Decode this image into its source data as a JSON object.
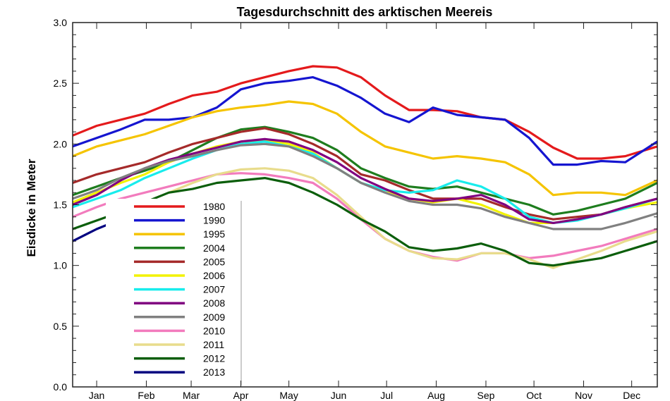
{
  "chart_data": {
    "type": "line",
    "title": "Tagesdurchschnitt des arktischen Meereis",
    "xlabel": "",
    "ylabel": "Eisdicke in Meter",
    "xlim": [
      0,
      365
    ],
    "ylim": [
      0.0,
      3.0
    ],
    "yticks": [
      "0.0",
      "0.5",
      "1.0",
      "1.5",
      "2.0",
      "2.5",
      "3.0"
    ],
    "xticks": [
      {
        "label": "Jan",
        "day": 15
      },
      {
        "label": "Feb",
        "day": 46
      },
      {
        "label": "Mar",
        "day": 74
      },
      {
        "label": "Apr",
        "day": 105
      },
      {
        "label": "May",
        "day": 135
      },
      {
        "label": "Jun",
        "day": 166
      },
      {
        "label": "Jul",
        "day": 196
      },
      {
        "label": "Aug",
        "day": 227
      },
      {
        "label": "Sep",
        "day": 258
      },
      {
        "label": "Oct",
        "day": 288
      },
      {
        "label": "Nov",
        "day": 319
      },
      {
        "label": "Dec",
        "day": 349
      }
    ],
    "grid": false,
    "legend_position": "bottom-left",
    "x": [
      0,
      15,
      30,
      45,
      60,
      75,
      90,
      105,
      120,
      135,
      150,
      165,
      180,
      195,
      210,
      225,
      240,
      255,
      270,
      285,
      300,
      315,
      330,
      345,
      365
    ],
    "series": [
      {
        "name": "1980",
        "color": "#e41a1c",
        "values": [
          2.07,
          2.15,
          2.2,
          2.25,
          2.33,
          2.4,
          2.43,
          2.5,
          2.55,
          2.6,
          2.64,
          2.63,
          2.55,
          2.4,
          2.28,
          2.28,
          2.27,
          2.22,
          2.2,
          2.1,
          1.97,
          1.88,
          1.88,
          1.9,
          1.98
        ]
      },
      {
        "name": "1990",
        "color": "#1515d0",
        "values": [
          1.98,
          2.05,
          2.12,
          2.2,
          2.2,
          2.22,
          2.3,
          2.45,
          2.5,
          2.52,
          2.55,
          2.48,
          2.38,
          2.25,
          2.18,
          2.3,
          2.24,
          2.22,
          2.2,
          2.05,
          1.83,
          1.83,
          1.86,
          1.85,
          2.02
        ]
      },
      {
        "name": "1995",
        "color": "#f5c400",
        "values": [
          1.9,
          1.98,
          2.03,
          2.08,
          2.15,
          2.22,
          2.27,
          2.3,
          2.32,
          2.35,
          2.33,
          2.25,
          2.1,
          1.98,
          1.93,
          1.88,
          1.9,
          1.88,
          1.85,
          1.75,
          1.58,
          1.6,
          1.6,
          1.58,
          1.7
        ]
      },
      {
        "name": "2004",
        "color": "#1e7d1e",
        "values": [
          1.58,
          1.65,
          1.72,
          1.78,
          1.85,
          1.95,
          2.05,
          2.12,
          2.14,
          2.1,
          2.05,
          1.95,
          1.8,
          1.72,
          1.65,
          1.63,
          1.65,
          1.6,
          1.55,
          1.5,
          1.42,
          1.45,
          1.5,
          1.55,
          1.68
        ]
      },
      {
        "name": "2005",
        "color": "#a52a2a",
        "values": [
          1.68,
          1.75,
          1.8,
          1.85,
          1.93,
          2.0,
          2.05,
          2.1,
          2.13,
          2.08,
          2.0,
          1.9,
          1.75,
          1.7,
          1.62,
          1.55,
          1.55,
          1.55,
          1.48,
          1.42,
          1.38,
          1.4,
          1.42,
          1.48,
          1.55
        ]
      },
      {
        "name": "2006",
        "color": "#f2f200",
        "values": [
          1.52,
          1.6,
          1.68,
          1.75,
          1.85,
          1.92,
          1.98,
          2.02,
          2.03,
          2.0,
          1.93,
          1.8,
          1.68,
          1.62,
          1.55,
          1.52,
          1.55,
          1.5,
          1.42,
          1.35,
          1.35,
          1.38,
          1.42,
          1.47,
          1.52
        ]
      },
      {
        "name": "2007",
        "color": "#18ecec",
        "values": [
          1.48,
          1.55,
          1.62,
          1.72,
          1.8,
          1.88,
          1.95,
          2.0,
          2.02,
          1.98,
          1.92,
          1.8,
          1.68,
          1.62,
          1.6,
          1.62,
          1.7,
          1.65,
          1.55,
          1.4,
          1.35,
          1.37,
          1.42,
          1.47,
          1.55
        ]
      },
      {
        "name": "2008",
        "color": "#800080",
        "values": [
          1.5,
          1.58,
          1.7,
          1.8,
          1.87,
          1.92,
          1.97,
          2.02,
          2.04,
          2.02,
          1.95,
          1.85,
          1.72,
          1.63,
          1.55,
          1.53,
          1.55,
          1.58,
          1.5,
          1.38,
          1.35,
          1.38,
          1.42,
          1.48,
          1.55
        ]
      },
      {
        "name": "2009",
        "color": "#808080",
        "values": [
          1.55,
          1.62,
          1.72,
          1.8,
          1.86,
          1.9,
          1.95,
          1.99,
          2.0,
          1.98,
          1.9,
          1.8,
          1.68,
          1.6,
          1.53,
          1.5,
          1.5,
          1.47,
          1.4,
          1.35,
          1.3,
          1.3,
          1.3,
          1.35,
          1.43
        ]
      },
      {
        "name": "2010",
        "color": "#f27bbd",
        "values": [
          1.4,
          1.48,
          1.55,
          1.6,
          1.65,
          1.7,
          1.75,
          1.76,
          1.75,
          1.72,
          1.68,
          1.55,
          1.38,
          1.22,
          1.12,
          1.07,
          1.04,
          1.1,
          1.1,
          1.06,
          1.08,
          1.12,
          1.16,
          1.22,
          1.3
        ]
      },
      {
        "name": "2011",
        "color": "#e8dc8c",
        "values": [
          null,
          null,
          null,
          null,
          1.6,
          1.68,
          1.75,
          1.79,
          1.8,
          1.78,
          1.72,
          1.58,
          1.4,
          1.22,
          1.12,
          1.06,
          1.05,
          1.1,
          1.1,
          1.05,
          0.98,
          1.05,
          1.12,
          1.2,
          1.28
        ]
      },
      {
        "name": "2012",
        "color": "#0b5e0b",
        "values": [
          1.3,
          1.37,
          1.44,
          1.52,
          1.6,
          1.63,
          1.68,
          1.7,
          1.72,
          1.68,
          1.6,
          1.5,
          1.38,
          1.28,
          1.15,
          1.12,
          1.14,
          1.18,
          1.12,
          1.02,
          1.0,
          1.03,
          1.06,
          1.12,
          1.2
        ]
      },
      {
        "name": "2013",
        "color": "#000080",
        "values": [
          1.2,
          1.3,
          1.38,
          null,
          null,
          null,
          null,
          null,
          null,
          null,
          null,
          null,
          null,
          null,
          null,
          null,
          null,
          null,
          null,
          null,
          null,
          null,
          null,
          null,
          null
        ]
      }
    ]
  }
}
